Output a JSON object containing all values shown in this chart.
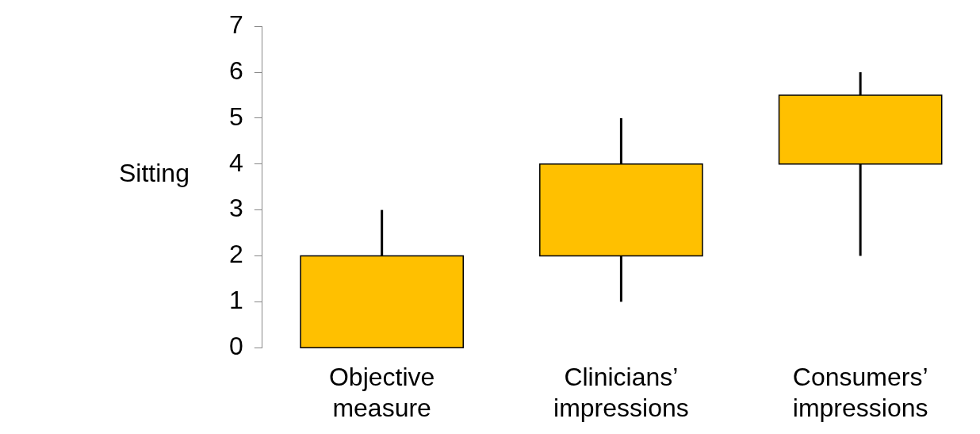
{
  "chart_data": {
    "type": "candlestick",
    "ylabel": "Sitting",
    "categories": [
      "Objective measure",
      "Clinicians’ impressions",
      "Consumers’ impressions"
    ],
    "ohlc": [
      [
        0,
        3,
        0,
        2
      ],
      [
        2,
        5,
        1,
        4
      ],
      [
        4,
        6,
        2,
        5.5
      ]
    ],
    "color": "#ffc000",
    "ylim": [
      0,
      7
    ],
    "yticks": [
      0,
      1,
      2,
      3,
      4,
      5,
      6,
      7
    ],
    "grid": false,
    "legend": false
  }
}
